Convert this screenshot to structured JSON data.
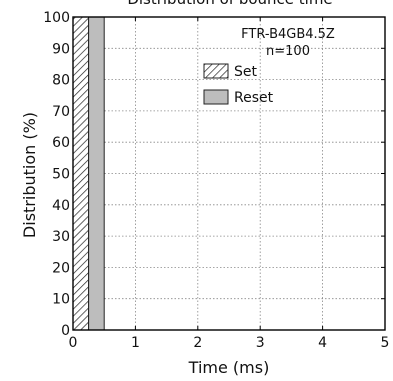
{
  "chart_data": {
    "type": "bar",
    "title": "Distribution of bounce time",
    "xlabel": "Time (ms)",
    "ylabel": "Distribution (%)",
    "xlim": [
      0,
      5
    ],
    "ylim": [
      0,
      100
    ],
    "x_ticks": [
      "0",
      "1",
      "2",
      "3",
      "4",
      "5"
    ],
    "y_ticks": [
      "0",
      "10",
      "20",
      "30",
      "40",
      "50",
      "60",
      "70",
      "80",
      "90",
      "100"
    ],
    "grid": true,
    "annotation": [
      "FTR-B4GB4.5Z",
      "n=100"
    ],
    "legend_position": "top-right",
    "series": [
      {
        "name": "Set",
        "x_range": [
          0,
          0.25
        ],
        "value": 100,
        "fill": "hatched"
      },
      {
        "name": "Reset",
        "x_range": [
          0.25,
          0.5
        ],
        "value": 100,
        "fill": "#bdbdbd"
      }
    ]
  }
}
